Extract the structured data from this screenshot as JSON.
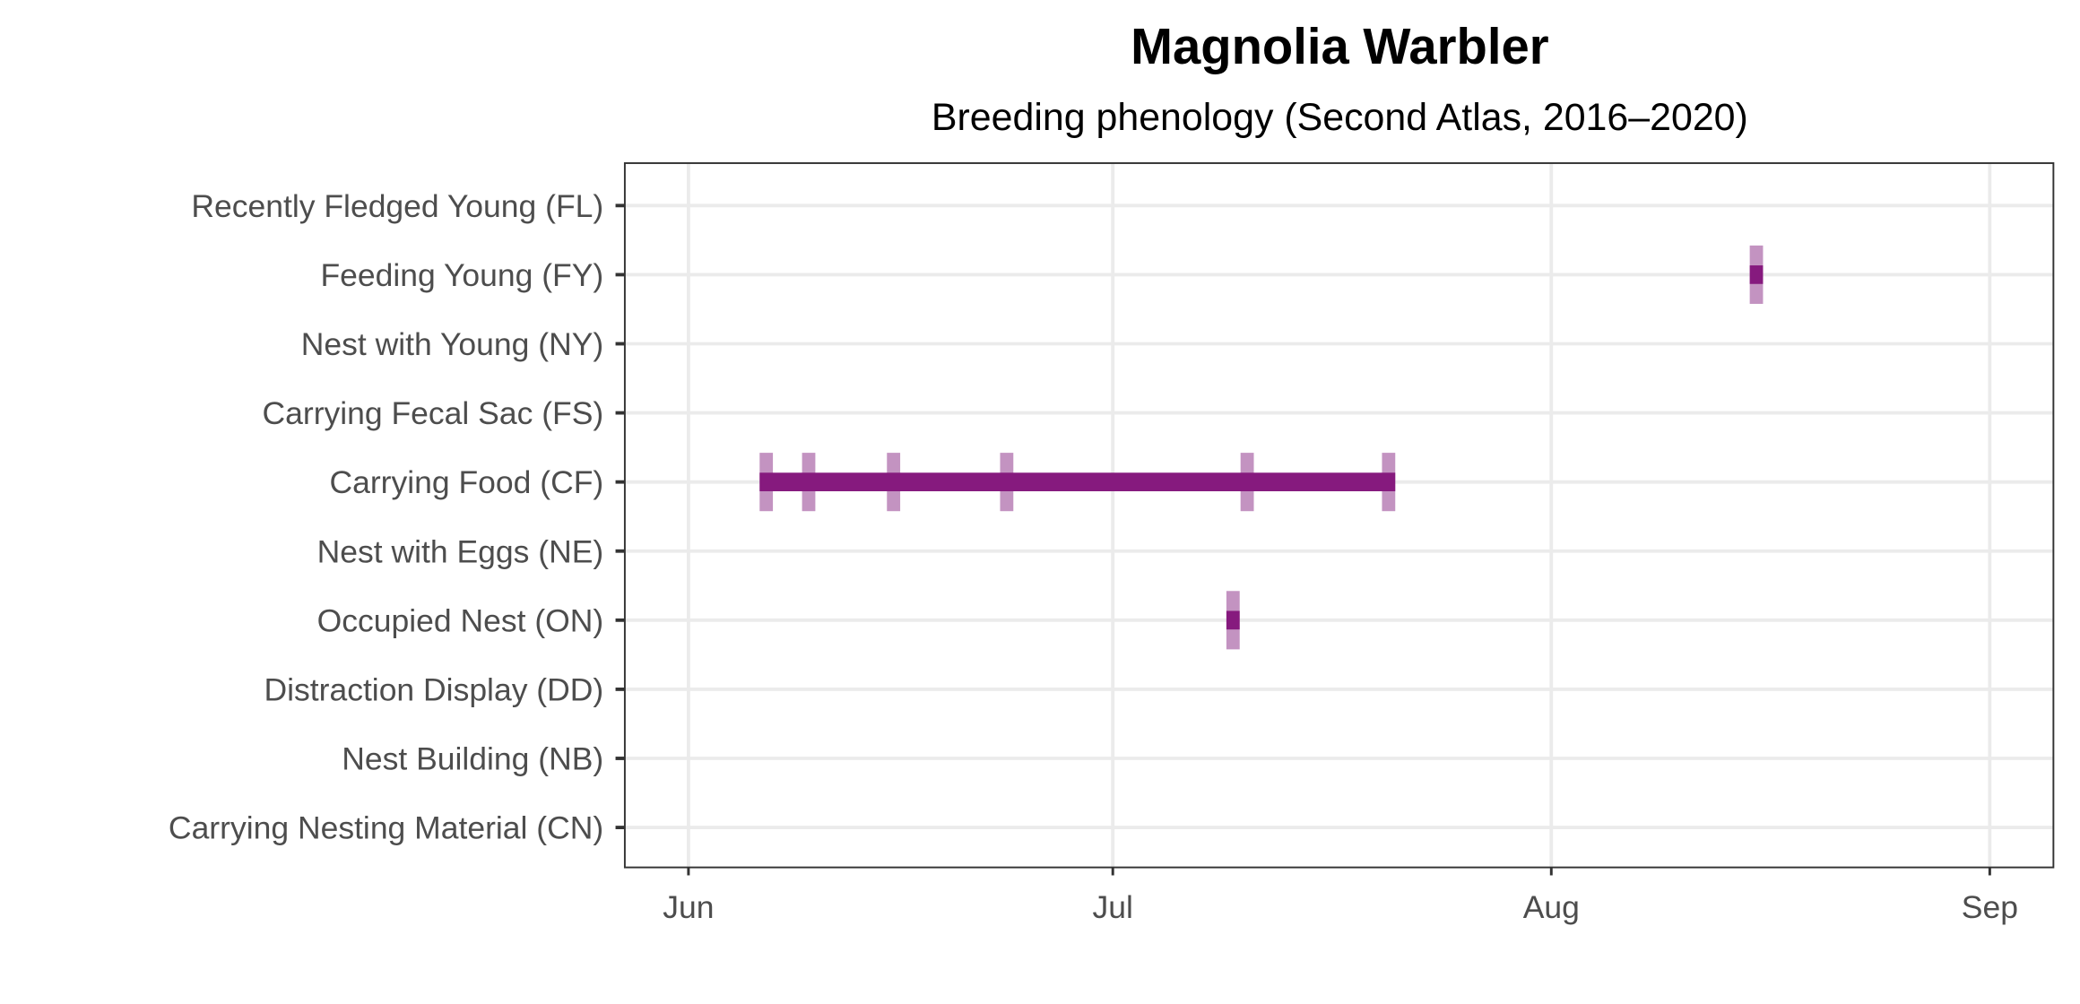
{
  "chart_data": {
    "type": "timeline",
    "title": "Magnolia Warbler",
    "subtitle": "Breeding phenology (Second Atlas, 2016–2020)",
    "x_unit": "days since Jun 1",
    "xlim": [
      -4.5,
      96.5
    ],
    "x_ticks": [
      {
        "label": "Jun",
        "value": 0
      },
      {
        "label": "Jul",
        "value": 30
      },
      {
        "label": "Aug",
        "value": 61
      },
      {
        "label": "Sep",
        "value": 92
      }
    ],
    "categories": [
      "Recently Fledged Young (FL)",
      "Feeding Young (FY)",
      "Nest with Young (NY)",
      "Carrying Fecal Sac (FS)",
      "Carrying Food (CF)",
      "Nest with Eggs (NE)",
      "Occupied Nest (ON)",
      "Distraction Display (DD)",
      "Nest Building (NB)",
      "Carrying Nesting Material (CN)"
    ],
    "series": [
      {
        "category": "Feeding Young (FY)",
        "observations": [
          75.5
        ],
        "range": [
          75.5,
          75.5
        ]
      },
      {
        "category": "Carrying Food (CF)",
        "observations": [
          5.5,
          8.5,
          14.5,
          22.5,
          39.5,
          49.5
        ],
        "range": [
          5.5,
          49.5
        ]
      },
      {
        "category": "Occupied Nest (ON)",
        "observations": [
          38.5
        ],
        "range": [
          38.5,
          38.5
        ]
      }
    ],
    "colors": {
      "range": "#861a7e",
      "observation": "#c393c1",
      "grid": "#ebebeb",
      "axis": "#333333"
    },
    "grid": true,
    "legend": "none"
  }
}
